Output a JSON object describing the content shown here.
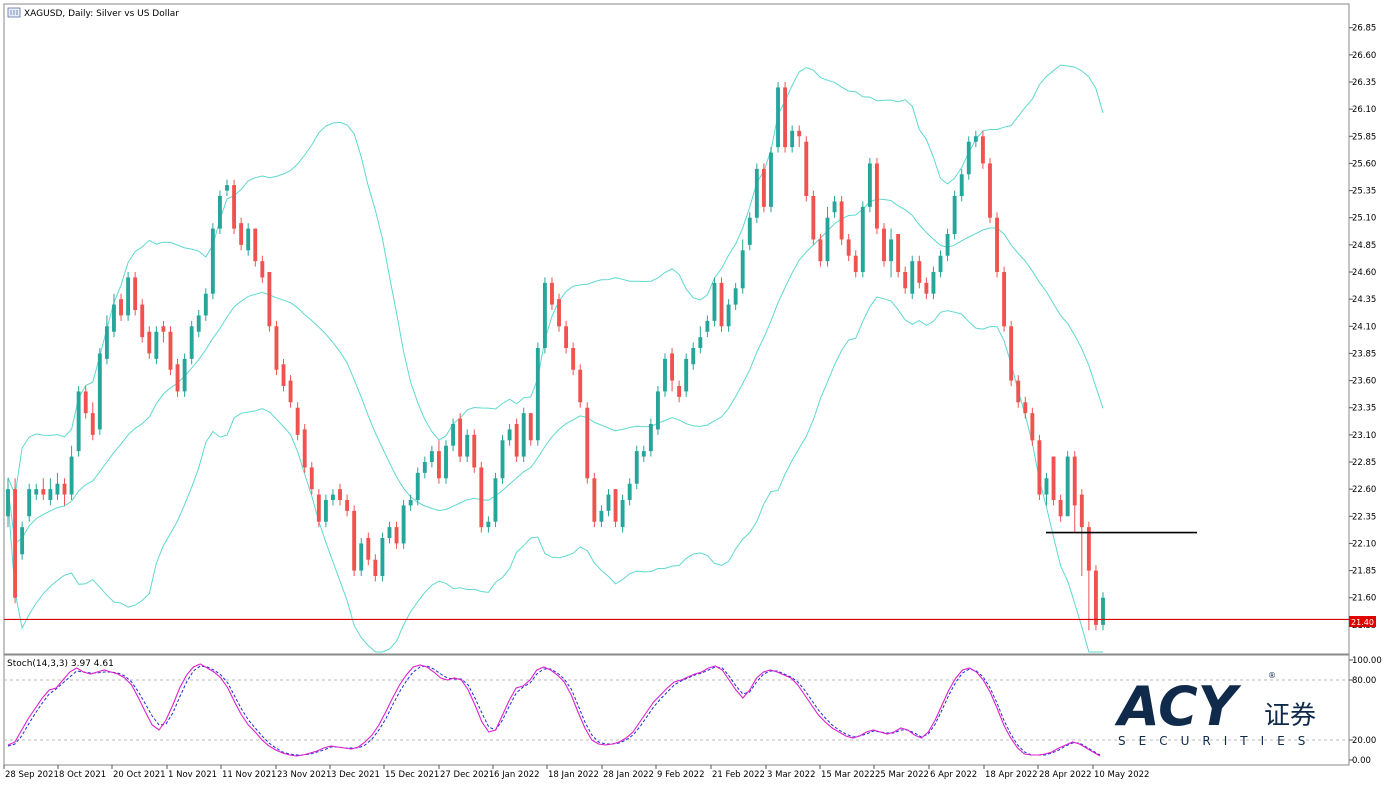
{
  "main_title": "XAGUSD, Daily:  Silver vs US Dollar",
  "stoch_title": "Stoch(14,3,3) 3.97 4.61",
  "price_tag": "21.40",
  "logo": {
    "word": "ACY",
    "cn": "证券",
    "sub": "SECURITIES",
    "reg": "®"
  },
  "colors": {
    "bull": "#26a69a",
    "bear": "#ef5350",
    "bands": "#5fd8d0",
    "support": "#e00000",
    "stoch_main": "#e020d0",
    "stoch_signal": "#1a2fd0"
  },
  "chart_data": [
    {
      "type": "candlestick",
      "title": "XAGUSD, Daily:  Silver vs US Dollar",
      "y_ticks": [
        "26.85",
        "26.60",
        "26.35",
        "26.10",
        "25.85",
        "25.60",
        "25.35",
        "25.10",
        "24.85",
        "24.60",
        "24.35",
        "24.10",
        "23.85",
        "23.60",
        "23.35",
        "23.10",
        "22.85",
        "22.60",
        "22.35",
        "22.10",
        "21.85",
        "21.60",
        "21.35"
      ],
      "x_ticks": [
        "28 Sep 2021",
        "8 Oct 2021",
        "20 Oct 2021",
        "1 Nov 2021",
        "11 Nov 2021",
        "23 Nov 2021",
        "3 Dec 2021",
        "15 Dec 2021",
        "27 Dec 2021",
        "6 Jan 2022",
        "18 Jan 2022",
        "28 Jan 2022",
        "9 Feb 2022",
        "21 Feb 2022",
        "3 Mar 2022",
        "15 Mar 2022",
        "25 Mar 2022",
        "6 Apr 2022",
        "18 Apr 2022",
        "28 Apr 2022",
        "10 May 2022"
      ],
      "ylim": [
        21.1,
        27.05
      ],
      "horizontal_lines": [
        {
          "price": 21.4,
          "color": "red"
        },
        {
          "price": 22.2,
          "color": "black",
          "segment": true
        }
      ],
      "indicator": "Bollinger Bands (20,2)",
      "closes": [
        22.6,
        21.6,
        22.25,
        22.6,
        22.6,
        22.55,
        22.6,
        22.65,
        22.55,
        22.9,
        23.5,
        23.3,
        23.1,
        23.85,
        24.1,
        24.3,
        24.2,
        24.55,
        24.25,
        24,
        23.85,
        24.05,
        24.05,
        23.7,
        23.5,
        23.8,
        24.1,
        24.2,
        24.4,
        25.0,
        25.3,
        25.4,
        25.0,
        24.85,
        25.0,
        24.7,
        24.55,
        24.1,
        23.7,
        23.55,
        23.4,
        23.1,
        22.8,
        22.6,
        22.3,
        22.5,
        22.55,
        22.5,
        22.4,
        21.85,
        22.1,
        21.95,
        21.8,
        22.15,
        22.25,
        22.1,
        22.45,
        22.5,
        22.75,
        22.85,
        22.95,
        22.7,
        23.0,
        23.2,
        22.9,
        23.1,
        22.8,
        22.25,
        22.3,
        22.7,
        23.05,
        23.15,
        22.9,
        23.3,
        23.05,
        23.9,
        24.5,
        24.3,
        24.1,
        23.9,
        23.7,
        23.4,
        22.7,
        22.3,
        22.4,
        22.55,
        22.3,
        22.5,
        22.65,
        22.95,
        22.95,
        23.2,
        23.5,
        23.8,
        23.6,
        23.45,
        23.8,
        23.9,
        24.0,
        24.15,
        24.5,
        24.1,
        24.3,
        24.45,
        24.8,
        25.1,
        25.55,
        25.2,
        25.7,
        26.3,
        25.75,
        25.9,
        25.85,
        25.3,
        24.9,
        24.7,
        25.1,
        25.25,
        24.9,
        24.75,
        24.6,
        25.2,
        25.6,
        25.0,
        24.7,
        24.9,
        24.6,
        24.45,
        24.7,
        24.5,
        24.4,
        24.6,
        24.75,
        24.95,
        25.3,
        25.5,
        25.8,
        25.85,
        25.6,
        25.1,
        24.6,
        24.1,
        23.6,
        23.4,
        23.3,
        23.05,
        22.55,
        22.7,
        22.5,
        22.35,
        22.9,
        22.45,
        22.25,
        21.85,
        21.35,
        21.6
      ],
      "opens": [
        22.35,
        22.6,
        22.0,
        22.35,
        22.55,
        22.6,
        22.5,
        22.55,
        22.65,
        22.55,
        22.95,
        23.5,
        23.3,
        23.15,
        23.8,
        24.05,
        24.35,
        24.2,
        24.55,
        24.3,
        24.05,
        23.8,
        24.1,
        24.05,
        23.75,
        23.5,
        23.8,
        24.05,
        24.2,
        24.4,
        25.0,
        25.35,
        25.4,
        25.05,
        24.8,
        25.0,
        24.7,
        24.6,
        24.1,
        23.75,
        23.6,
        23.35,
        23.15,
        22.8,
        22.55,
        22.3,
        22.5,
        22.6,
        22.5,
        22.4,
        21.85,
        22.15,
        21.95,
        21.8,
        22.15,
        22.25,
        22.1,
        22.45,
        22.5,
        22.75,
        22.85,
        22.95,
        22.7,
        23.0,
        23.25,
        22.9,
        23.1,
        22.8,
        22.25,
        22.3,
        22.7,
        23.05,
        23.2,
        22.9,
        23.3,
        23.05,
        23.9,
        24.5,
        24.35,
        24.1,
        23.9,
        23.7,
        23.35,
        22.7,
        22.3,
        22.4,
        22.6,
        22.25,
        22.5,
        22.65,
        22.9,
        22.95,
        23.15,
        23.5,
        23.85,
        23.55,
        23.5,
        23.75,
        23.9,
        24.05,
        24.15,
        24.5,
        24.1,
        24.3,
        24.45,
        24.85,
        25.1,
        25.55,
        25.2,
        25.75,
        26.3,
        25.75,
        25.9,
        25.8,
        25.3,
        24.9,
        24.7,
        25.15,
        25.25,
        24.9,
        24.75,
        24.6,
        25.2,
        25.6,
        25.0,
        24.7,
        24.95,
        24.6,
        24.4,
        24.7,
        24.5,
        24.4,
        24.6,
        24.75,
        24.95,
        25.3,
        25.5,
        25.8,
        25.85,
        25.6,
        25.1,
        24.6,
        24.1,
        23.6,
        23.4,
        23.3,
        23.05,
        22.55,
        22.9,
        22.5,
        22.35,
        22.9,
        22.55,
        22.25,
        21.85,
        21.35
      ],
      "highs": [
        22.7,
        22.7,
        22.3,
        22.65,
        22.65,
        22.7,
        22.7,
        22.75,
        22.7,
        23.0,
        23.55,
        23.55,
        23.4,
        23.9,
        24.2,
        24.4,
        24.4,
        24.6,
        24.6,
        24.35,
        24.1,
        24.1,
        24.15,
        24.1,
        23.8,
        23.85,
        24.15,
        24.25,
        24.45,
        25.05,
        25.35,
        25.45,
        25.45,
        25.1,
        25.05,
        25.0,
        24.75,
        24.6,
        24.15,
        23.8,
        23.65,
        23.4,
        23.2,
        22.85,
        22.6,
        22.55,
        22.6,
        22.65,
        22.55,
        22.45,
        22.15,
        22.2,
        22.0,
        22.2,
        22.3,
        22.3,
        22.5,
        22.55,
        22.8,
        22.9,
        23.0,
        23.05,
        23.05,
        23.25,
        23.3,
        23.15,
        23.15,
        22.85,
        22.35,
        22.75,
        23.1,
        23.2,
        23.25,
        23.35,
        23.3,
        23.95,
        24.55,
        24.55,
        24.4,
        24.15,
        23.95,
        23.75,
        23.4,
        22.75,
        22.45,
        22.6,
        22.6,
        22.55,
        22.7,
        23.0,
        23.0,
        23.25,
        23.55,
        23.85,
        23.9,
        23.6,
        23.85,
        23.95,
        24.1,
        24.2,
        24.55,
        24.55,
        24.35,
        24.5,
        24.9,
        25.15,
        25.6,
        25.6,
        25.75,
        26.35,
        26.35,
        25.95,
        25.95,
        25.85,
        25.35,
        24.95,
        25.2,
        25.3,
        25.3,
        24.95,
        24.8,
        25.25,
        25.65,
        25.65,
        25.05,
        25.0,
        24.95,
        24.65,
        24.75,
        24.75,
        24.55,
        24.65,
        24.8,
        25.0,
        25.35,
        25.55,
        25.85,
        25.9,
        25.9,
        25.65,
        25.15,
        24.65,
        24.15,
        23.65,
        23.45,
        23.35,
        23.1,
        22.75,
        22.9,
        22.55,
        22.95,
        22.95,
        22.6,
        22.3,
        21.9,
        21.65
      ],
      "lows": [
        22.25,
        21.55,
        21.95,
        22.3,
        22.5,
        22.5,
        22.45,
        22.5,
        22.45,
        22.5,
        22.9,
        23.25,
        23.05,
        23.1,
        23.75,
        24.0,
        24.15,
        24.15,
        24.2,
        23.95,
        23.8,
        23.75,
        23.95,
        23.65,
        23.45,
        23.45,
        23.75,
        24.0,
        24.15,
        24.35,
        24.95,
        25.3,
        24.95,
        24.8,
        24.75,
        24.65,
        24.5,
        24.05,
        23.65,
        23.5,
        23.35,
        23.05,
        22.75,
        22.55,
        22.25,
        22.25,
        22.45,
        22.45,
        22.35,
        21.8,
        21.8,
        21.9,
        21.75,
        21.75,
        22.1,
        22.05,
        22.05,
        22.4,
        22.45,
        22.7,
        22.8,
        22.65,
        22.65,
        22.95,
        22.85,
        22.85,
        22.75,
        22.2,
        22.2,
        22.25,
        22.65,
        23.0,
        22.85,
        22.85,
        23.0,
        23.0,
        23.85,
        24.25,
        24.05,
        23.85,
        23.65,
        23.35,
        22.65,
        22.25,
        22.25,
        22.35,
        22.25,
        22.2,
        22.45,
        22.6,
        22.85,
        22.9,
        23.1,
        23.45,
        23.5,
        23.4,
        23.45,
        23.7,
        23.85,
        24.0,
        24.1,
        24.05,
        24.05,
        24.25,
        24.4,
        24.8,
        25.05,
        25.15,
        25.15,
        25.7,
        25.7,
        25.7,
        25.75,
        25.25,
        24.85,
        24.65,
        24.65,
        25.1,
        24.85,
        24.7,
        24.55,
        24.55,
        25.15,
        24.95,
        24.65,
        24.55,
        24.55,
        24.4,
        24.35,
        24.45,
        24.35,
        24.35,
        24.55,
        24.7,
        24.9,
        25.25,
        25.45,
        25.75,
        25.55,
        25.05,
        24.55,
        24.05,
        23.55,
        23.35,
        23.25,
        23.0,
        22.5,
        22.45,
        22.45,
        22.3,
        22.4,
        22.2,
        21.8,
        21.3,
        21.3,
        21.3
      ]
    },
    {
      "type": "line",
      "title": "Stoch(14,3,3) 3.97 4.61",
      "y_ticks": [
        "100.00",
        "80.00",
        "20.00",
        "0.00"
      ],
      "levels": [
        80,
        20
      ],
      "ylim": [
        0,
        100
      ],
      "series": [
        {
          "values": [
            15,
            18,
            30,
            42,
            52,
            62,
            70,
            72,
            80,
            88,
            92,
            88,
            86,
            88,
            90,
            88,
            86,
            82,
            75,
            62,
            48,
            35,
            30,
            40,
            55,
            72,
            85,
            93,
            96,
            92,
            88,
            82,
            72,
            58,
            45,
            35,
            28,
            20,
            14,
            10,
            7,
            5,
            4,
            5,
            7,
            9,
            12,
            14,
            13,
            12,
            11,
            13,
            18,
            25,
            35,
            48,
            62,
            75,
            85,
            93,
            95,
            93,
            88,
            82,
            80,
            82,
            80,
            70,
            55,
            38,
            28,
            30,
            45,
            60,
            72,
            74,
            80,
            90,
            93,
            90,
            85,
            78,
            65,
            48,
            32,
            20,
            16,
            15,
            16,
            18,
            22,
            28,
            38,
            48,
            58,
            65,
            72,
            78,
            80,
            83,
            86,
            88,
            92,
            94,
            90,
            80,
            70,
            62,
            70,
            82,
            88,
            90,
            88,
            85,
            82,
            75,
            65,
            55,
            45,
            38,
            32,
            28,
            24,
            22,
            24,
            28,
            30,
            28,
            26,
            28,
            32,
            30,
            25,
            22,
            28,
            40,
            55,
            70,
            82,
            90,
            92,
            88,
            80,
            68,
            52,
            35,
            22,
            12,
            6,
            5,
            5,
            6,
            8,
            12,
            15,
            18,
            16,
            12,
            8,
            4
          ]
        },
        {
          "values": [
            14,
            16,
            24,
            36,
            47,
            57,
            66,
            71,
            77,
            83,
            89,
            88,
            87,
            87,
            88,
            88,
            87,
            84,
            78,
            68,
            56,
            44,
            35,
            36,
            47,
            63,
            78,
            89,
            94,
            93,
            90,
            85,
            77,
            64,
            51,
            40,
            32,
            24,
            17,
            12,
            8,
            6,
            5,
            5,
            6,
            8,
            10,
            13,
            13,
            12,
            12,
            12,
            15,
            21,
            30,
            41,
            55,
            68,
            79,
            88,
            93,
            94,
            91,
            86,
            82,
            81,
            81,
            75,
            62,
            47,
            33,
            30,
            40,
            54,
            67,
            73,
            77,
            86,
            91,
            91,
            87,
            81,
            71,
            55,
            38,
            25,
            18,
            16,
            16,
            17,
            20,
            25,
            33,
            43,
            53,
            61,
            68,
            75,
            79,
            82,
            85,
            87,
            90,
            93,
            92,
            84,
            74,
            66,
            68,
            78,
            86,
            89,
            89,
            86,
            83,
            78,
            70,
            60,
            50,
            42,
            35,
            30,
            26,
            23,
            24,
            26,
            29,
            28,
            27,
            27,
            30,
            30,
            27,
            23,
            26,
            36,
            50,
            65,
            78,
            87,
            91,
            89,
            83,
            72,
            57,
            40,
            26,
            15,
            8,
            5,
            5,
            5,
            7,
            10,
            14,
            17,
            17,
            13,
            9,
            5
          ]
        }
      ]
    }
  ]
}
